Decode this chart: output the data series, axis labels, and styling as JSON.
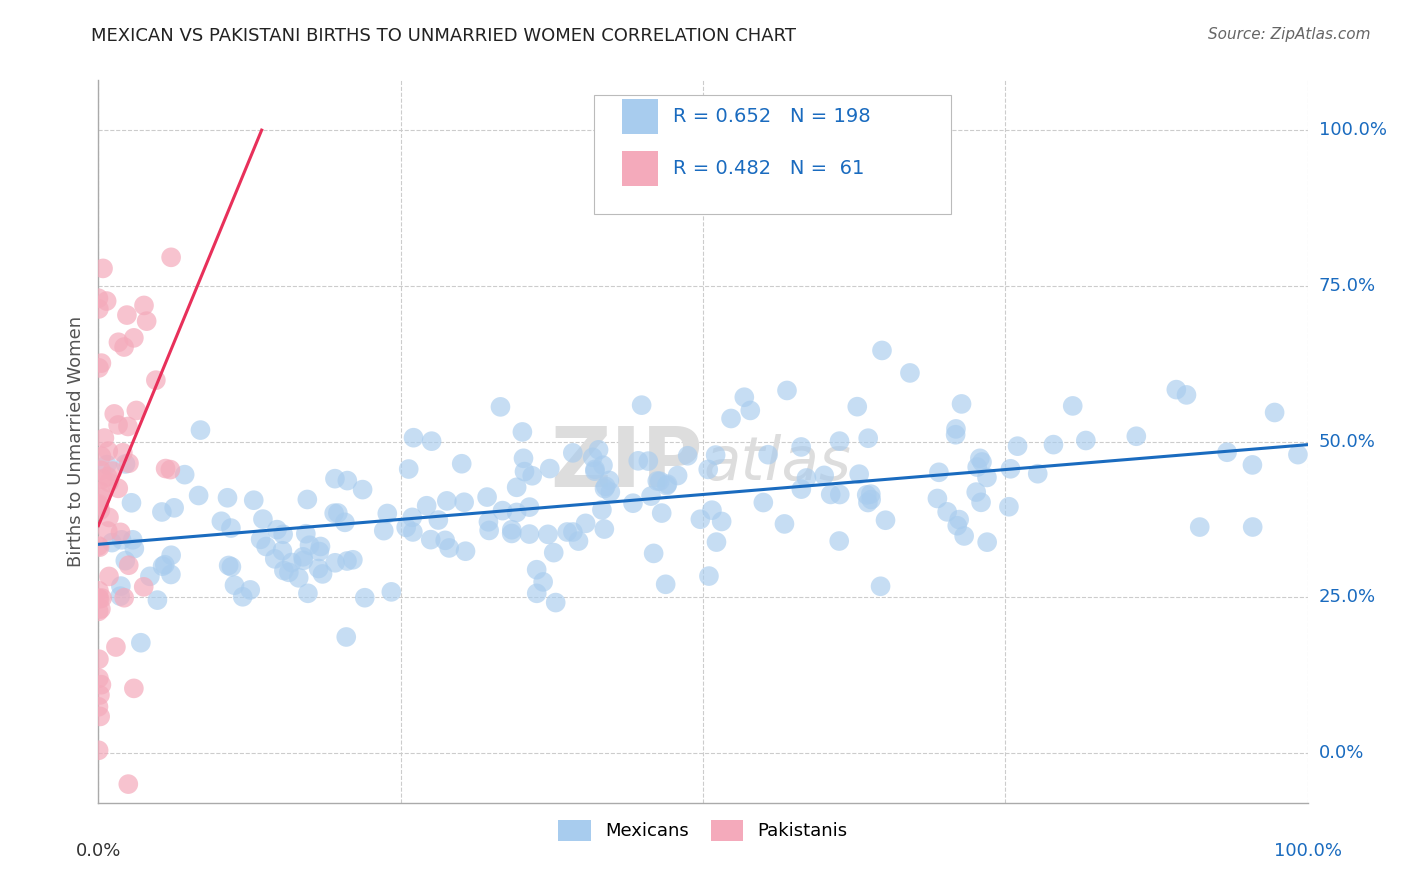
{
  "title": "MEXICAN VS PAKISTANI BIRTHS TO UNMARRIED WOMEN CORRELATION CHART",
  "source": "Source: ZipAtlas.com",
  "ylabel": "Births to Unmarried Women",
  "xlim": [
    0,
    1
  ],
  "ylim": [
    -0.08,
    1.08
  ],
  "ytick_values": [
    0.0,
    0.25,
    0.5,
    0.75,
    1.0
  ],
  "ytick_labels": [
    "0.0%",
    "25.0%",
    "50.0%",
    "75.0%",
    "100.0%"
  ],
  "xtick_values": [
    0.0,
    0.25,
    0.5,
    0.75,
    1.0
  ],
  "blue_R": 0.652,
  "blue_N": 198,
  "pink_R": 0.482,
  "pink_N": 61,
  "blue_color": "#A8CCEE",
  "pink_color": "#F4AABB",
  "blue_line_color": "#1a6bbf",
  "pink_line_color": "#E8305A",
  "grid_color": "#CCCCCC",
  "title_color": "#222222",
  "ylabel_color": "#555555",
  "right_tick_color": "#1a6bbf",
  "watermark_color": "#DDDDDD",
  "legend_blue_label": "Mexicans",
  "legend_pink_label": "Pakistanis",
  "blue_line_x": [
    0.0,
    1.0
  ],
  "blue_line_y": [
    0.335,
    0.495
  ],
  "pink_line_x": [
    0.0,
    0.135
  ],
  "pink_line_y": [
    0.365,
    1.0
  ]
}
